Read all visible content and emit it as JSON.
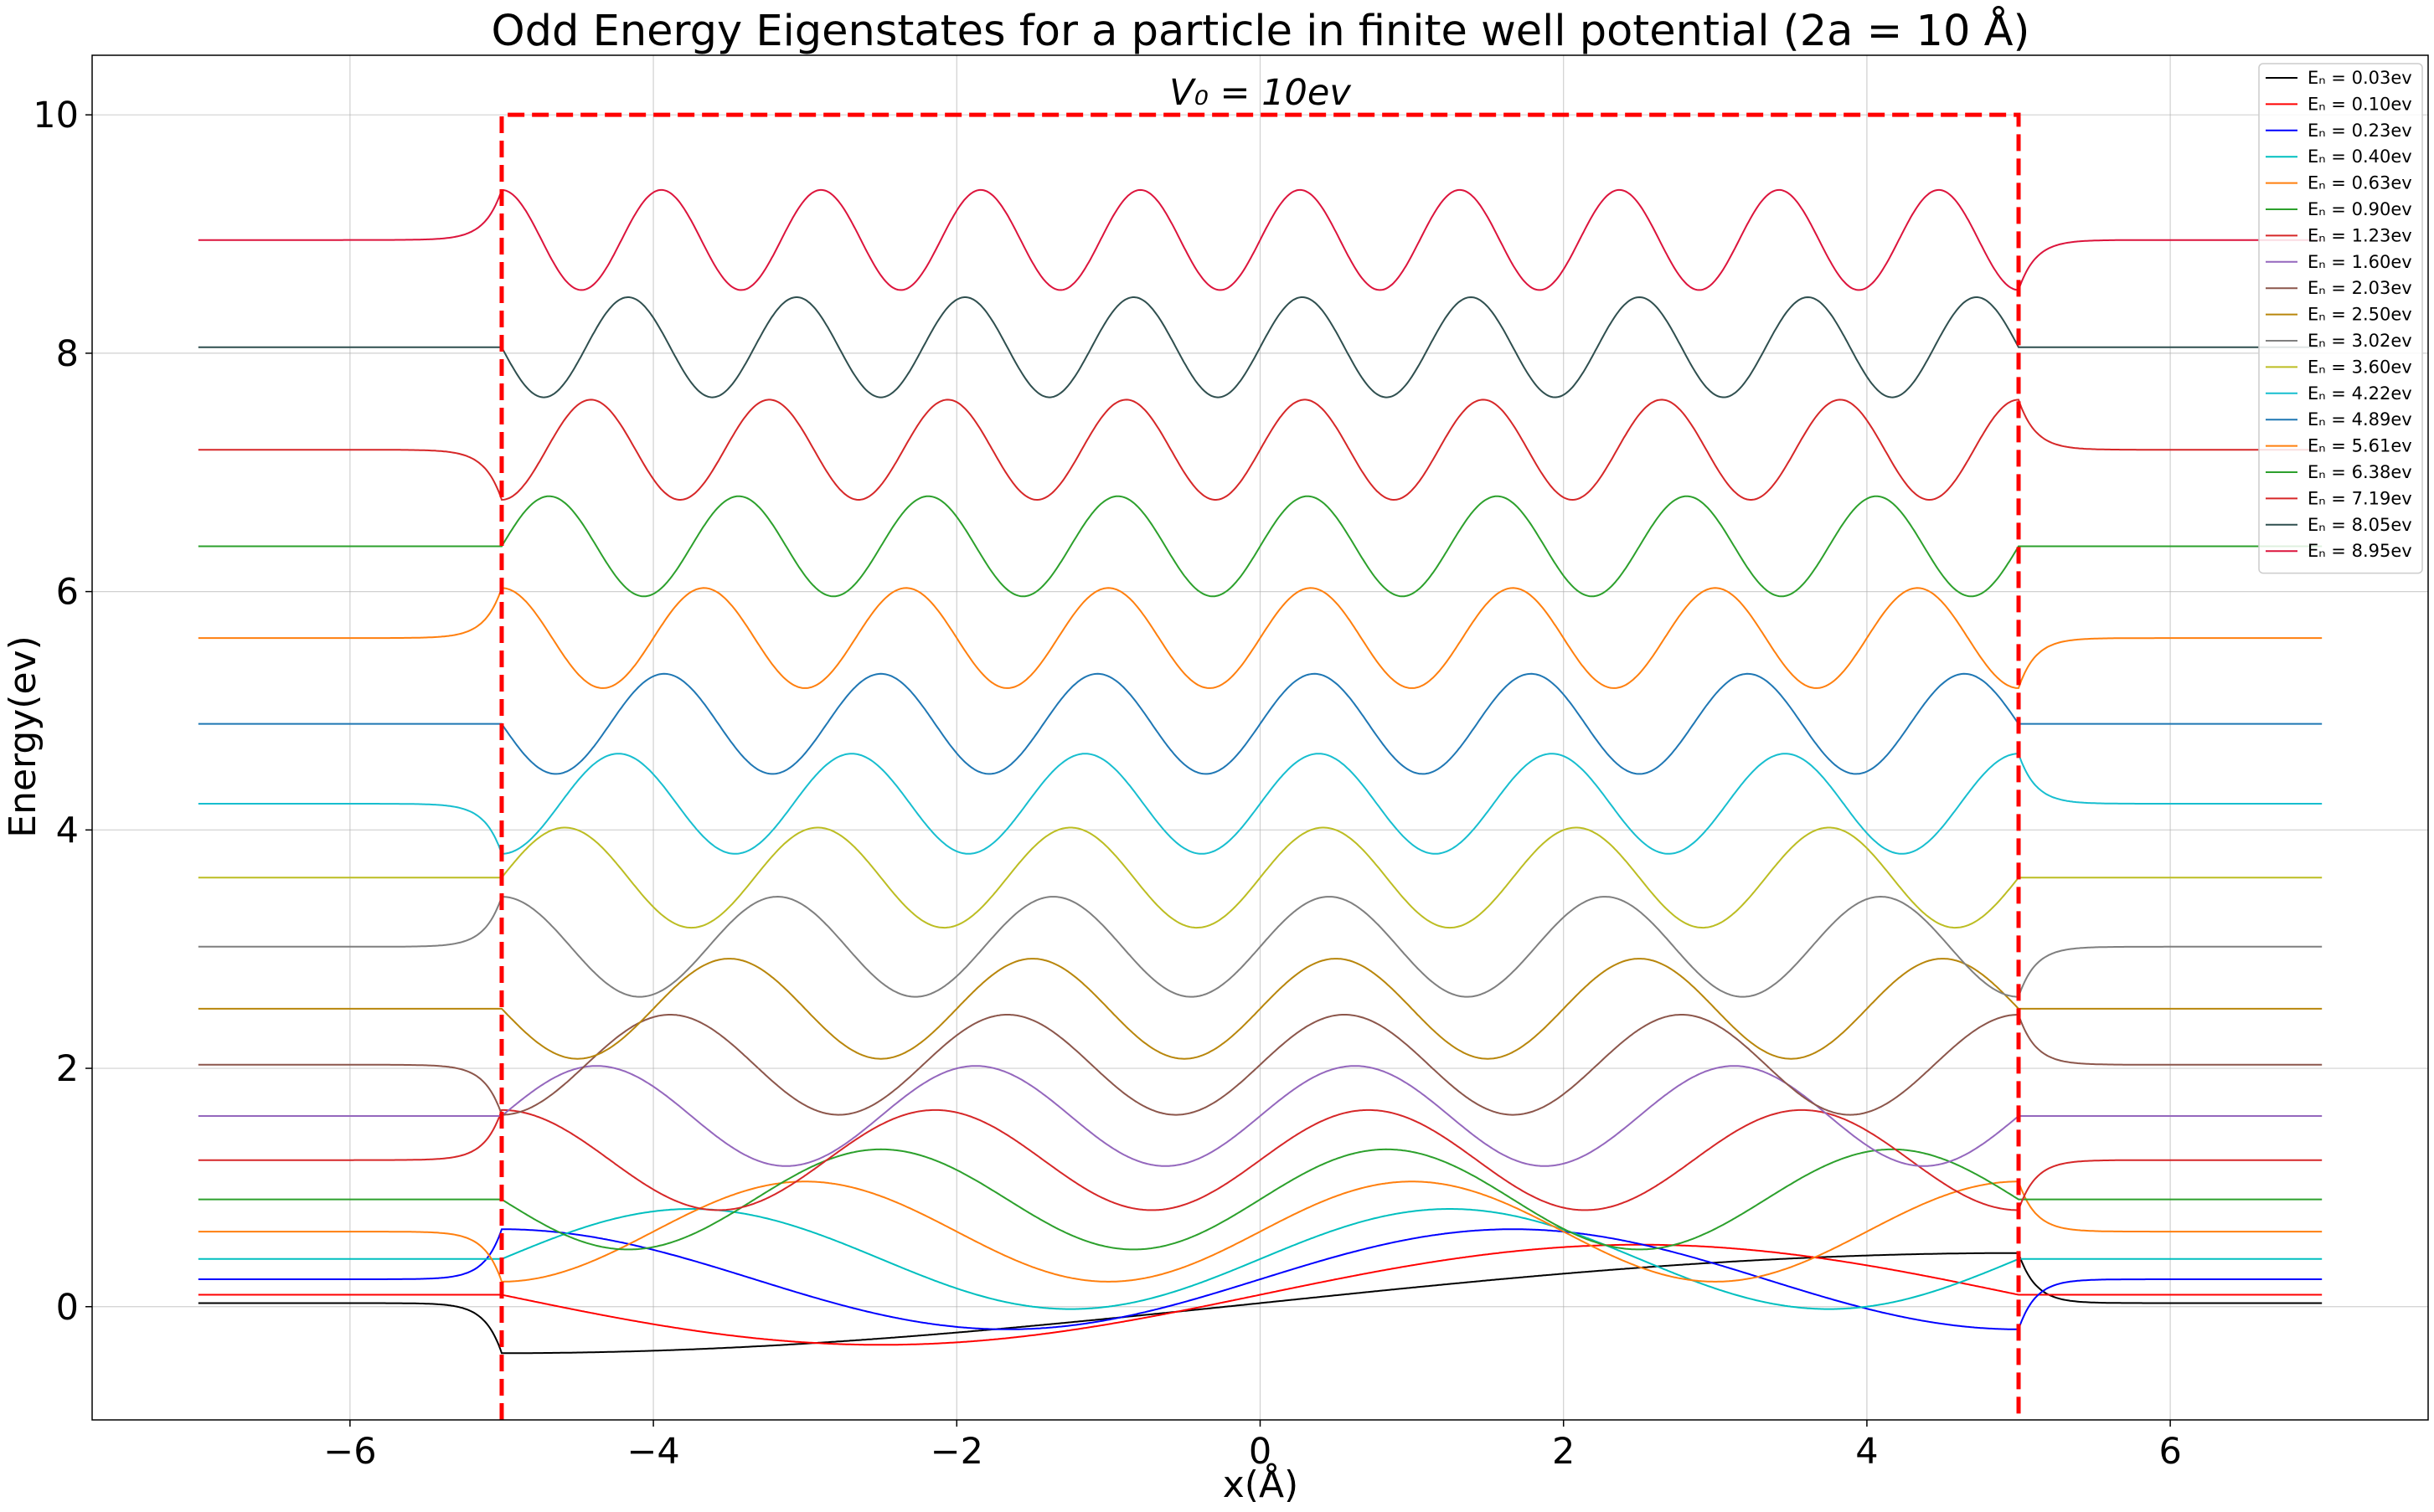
{
  "chart_data": {
    "type": "line",
    "title": "Odd Energy Eigenstates for a particle in finite well potential (2a = 10 Å)",
    "xlabel": "x(Å)",
    "ylabel": "Energy(ev)",
    "xlim": [
      -7.7,
      7.7
    ],
    "ylim": [
      -0.95,
      10.5
    ],
    "x_ticks": [
      -6,
      -4,
      -2,
      0,
      2,
      4,
      6
    ],
    "x_tick_labels": [
      "−6",
      "−4",
      "−2",
      "0",
      "2",
      "4",
      "6"
    ],
    "y_ticks": [
      0,
      2,
      4,
      6,
      8,
      10
    ],
    "y_tick_labels": [
      "0",
      "2",
      "4",
      "6",
      "8",
      "10"
    ],
    "grid": true,
    "legend_position": "top-right",
    "well": {
      "x_left": -5,
      "x_right": 5,
      "v0": 10,
      "label": "V₀ = 10ev",
      "color": "#ff0000"
    },
    "wave": {
      "x_range": [
        -7,
        7
      ],
      "amplitude": 0.42,
      "decay": 9
    },
    "series": [
      {
        "name": "Eₙ = 0.03ev",
        "energy": 0.03,
        "n": 1,
        "color": "#000000"
      },
      {
        "name": "Eₙ = 0.10ev",
        "energy": 0.1,
        "n": 2,
        "color": "#ff0000"
      },
      {
        "name": "Eₙ = 0.23ev",
        "energy": 0.23,
        "n": 3,
        "color": "#0000ff"
      },
      {
        "name": "Eₙ = 0.40ev",
        "energy": 0.4,
        "n": 4,
        "color": "#00bfbf"
      },
      {
        "name": "Eₙ = 0.63ev",
        "energy": 0.63,
        "n": 5,
        "color": "#ff7f0e"
      },
      {
        "name": "Eₙ = 0.90ev",
        "energy": 0.9,
        "n": 6,
        "color": "#2ca02c"
      },
      {
        "name": "Eₙ = 1.23ev",
        "energy": 1.23,
        "n": 7,
        "color": "#d62728"
      },
      {
        "name": "Eₙ = 1.60ev",
        "energy": 1.6,
        "n": 8,
        "color": "#9467bd"
      },
      {
        "name": "Eₙ = 2.03ev",
        "energy": 2.03,
        "n": 9,
        "color": "#8c564b"
      },
      {
        "name": "Eₙ = 2.50ev",
        "energy": 2.5,
        "n": 10,
        "color": "#b8860b"
      },
      {
        "name": "Eₙ = 3.02ev",
        "energy": 3.02,
        "n": 11,
        "color": "#7f7f7f"
      },
      {
        "name": "Eₙ = 3.60ev",
        "energy": 3.6,
        "n": 12,
        "color": "#bcbd22"
      },
      {
        "name": "Eₙ = 4.22ev",
        "energy": 4.22,
        "n": 13,
        "color": "#17becf"
      },
      {
        "name": "Eₙ = 4.89ev",
        "energy": 4.89,
        "n": 14,
        "color": "#1f77b4"
      },
      {
        "name": "Eₙ = 5.61ev",
        "energy": 5.61,
        "n": 15,
        "color": "#ff7f0e"
      },
      {
        "name": "Eₙ = 6.38ev",
        "energy": 6.38,
        "n": 16,
        "color": "#2ca02c"
      },
      {
        "name": "Eₙ = 7.19ev",
        "energy": 7.19,
        "n": 17,
        "color": "#d62728"
      },
      {
        "name": "Eₙ = 8.05ev",
        "energy": 8.05,
        "n": 18,
        "color": "#2f4f4f"
      },
      {
        "name": "Eₙ = 8.95ev",
        "energy": 8.95,
        "n": 19,
        "color": "#dc143c"
      }
    ]
  }
}
